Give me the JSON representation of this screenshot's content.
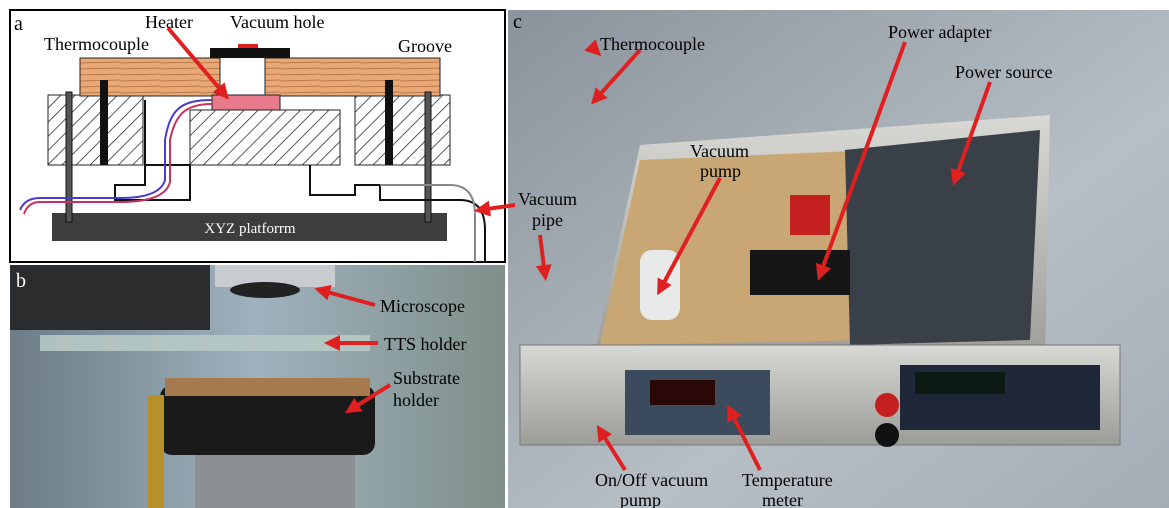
{
  "panels": [
    {
      "label": "a",
      "annotations": [
        {
          "lines": [
            "Heater"
          ]
        },
        {
          "lines": [
            "Vacuum hole"
          ]
        },
        {
          "lines": [
            "Thermocouple"
          ]
        },
        {
          "lines": [
            "Groove"
          ]
        },
        {
          "lines": [
            "XYZ platforrm"
          ]
        }
      ]
    },
    {
      "label": "b",
      "annotations": [
        {
          "lines": [
            "Microscope"
          ]
        },
        {
          "lines": [
            "TTS holder"
          ]
        },
        {
          "lines": [
            "Substrate",
            "holder"
          ]
        }
      ]
    },
    {
      "label": "c",
      "annotations": [
        {
          "lines": [
            "Thermocouple"
          ]
        },
        {
          "lines": [
            "Power adapter"
          ]
        },
        {
          "lines": [
            "Power source"
          ]
        },
        {
          "lines": [
            "Vacuum",
            "pump"
          ]
        },
        {
          "lines": [
            "Vacuum",
            "pipe"
          ]
        },
        {
          "lines": [
            "On/Off vacuum",
            "pump"
          ]
        },
        {
          "lines": [
            "Temperature",
            "meter"
          ]
        }
      ]
    }
  ]
}
